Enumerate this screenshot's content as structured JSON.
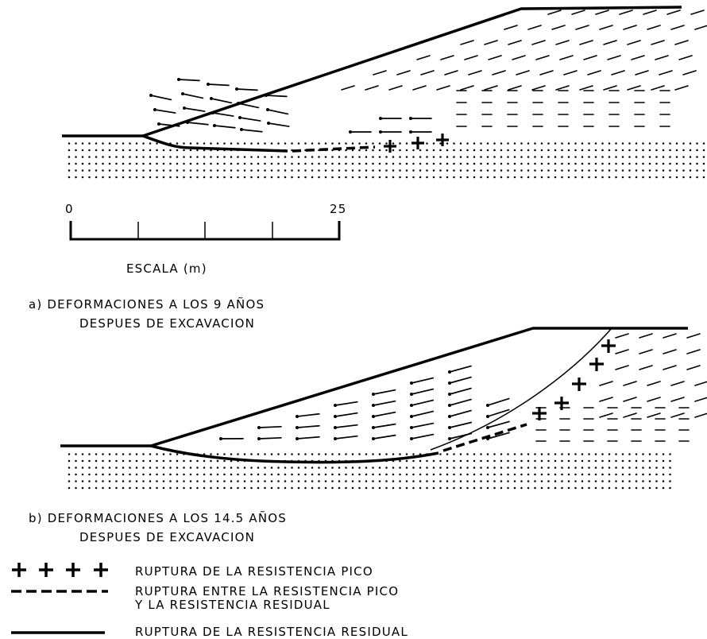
{
  "scale": {
    "tick_start": "0",
    "tick_end": "25",
    "caption": "ESCALA (m)"
  },
  "panel_a": {
    "caption_line1": "a) DEFORMACIONES A LOS 9 AÑOS",
    "caption_line2": "DESPUES DE EXCAVACION"
  },
  "panel_b": {
    "caption_line1": "b) DEFORMACIONES A LOS 14.5 AÑOS",
    "caption_line2": "DESPUES DE EXCAVACION"
  },
  "legend": {
    "peak": "RUPTURA DE LA RESISTENCIA PICO",
    "intermediate_line1": "RUPTURA ENTRE LA RESISTENCIA PICO",
    "intermediate_line2": "Y LA RESISTENCIA RESIDUAL",
    "residual": "RUPTURA DE LA RESISTENCIA RESIDUAL"
  }
}
